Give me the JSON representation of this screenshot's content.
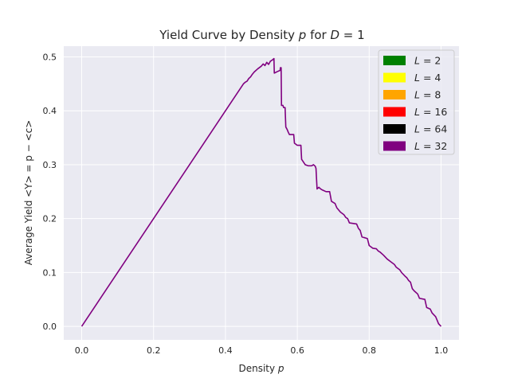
{
  "chart_data": {
    "type": "line",
    "title": "Yield Curve by Density p for D = 1",
    "title_parts": {
      "prefix": "Yield Curve by Density ",
      "var_p": "p",
      "middle": " for ",
      "var_D": "D",
      "suffix": " =  1"
    },
    "xlabel": "Density p",
    "xlabel_parts": {
      "text": "Density ",
      "var": "p"
    },
    "ylabel": "Average Yield  <Y> = p − <c>",
    "xlim": [
      -0.05,
      1.05
    ],
    "ylim": [
      -0.025,
      0.52
    ],
    "x_ticks": [
      0.0,
      0.2,
      0.4,
      0.6,
      0.8,
      1.0
    ],
    "x_tick_labels": [
      "0.0",
      "0.2",
      "0.4",
      "0.6",
      "0.8",
      "1.0"
    ],
    "y_ticks": [
      0.0,
      0.1,
      0.2,
      0.3,
      0.4,
      0.5
    ],
    "y_tick_labels": [
      "0.0",
      "0.1",
      "0.2",
      "0.3",
      "0.4",
      "0.5"
    ],
    "grid": true,
    "legend_position": "top-right",
    "legend": [
      {
        "label": "L = 2",
        "var": "L",
        "value": "2",
        "color": "#008000"
      },
      {
        "label": "L = 4",
        "var": "L",
        "value": "4",
        "color": "#ffff00"
      },
      {
        "label": "L = 8",
        "var": "L",
        "value": "8",
        "color": "#ffa500"
      },
      {
        "label": "L = 16",
        "var": "L",
        "value": "16",
        "color": "#ff0000"
      },
      {
        "label": "L = 64",
        "var": "L",
        "value": "64",
        "color": "#000000"
      },
      {
        "label": "L = 32",
        "var": "L",
        "value": "32",
        "color": "#800080"
      }
    ],
    "series": [
      {
        "name": "L = 32",
        "color": "#800080",
        "points": [
          [
            0.0,
            0.0
          ],
          [
            0.45,
            0.45
          ],
          [
            0.455,
            0.453
          ],
          [
            0.46,
            0.455
          ],
          [
            0.465,
            0.46
          ],
          [
            0.47,
            0.463
          ],
          [
            0.475,
            0.468
          ],
          [
            0.48,
            0.472
          ],
          [
            0.49,
            0.478
          ],
          [
            0.5,
            0.483
          ],
          [
            0.505,
            0.487
          ],
          [
            0.51,
            0.484
          ],
          [
            0.515,
            0.49
          ],
          [
            0.52,
            0.486
          ],
          [
            0.525,
            0.492
          ],
          [
            0.53,
            0.494
          ],
          [
            0.535,
            0.497
          ],
          [
            0.536,
            0.47
          ],
          [
            0.545,
            0.473
          ],
          [
            0.552,
            0.475
          ],
          [
            0.553,
            0.48
          ],
          [
            0.555,
            0.48
          ],
          [
            0.556,
            0.41
          ],
          [
            0.56,
            0.41
          ],
          [
            0.562,
            0.406
          ],
          [
            0.566,
            0.406
          ],
          [
            0.568,
            0.37
          ],
          [
            0.572,
            0.365
          ],
          [
            0.575,
            0.36
          ],
          [
            0.578,
            0.356
          ],
          [
            0.59,
            0.356
          ],
          [
            0.592,
            0.34
          ],
          [
            0.6,
            0.336
          ],
          [
            0.61,
            0.336
          ],
          [
            0.612,
            0.31
          ],
          [
            0.617,
            0.305
          ],
          [
            0.622,
            0.3
          ],
          [
            0.63,
            0.298
          ],
          [
            0.64,
            0.298
          ],
          [
            0.645,
            0.3
          ],
          [
            0.65,
            0.297
          ],
          [
            0.652,
            0.293
          ],
          [
            0.655,
            0.255
          ],
          [
            0.66,
            0.258
          ],
          [
            0.665,
            0.255
          ],
          [
            0.67,
            0.253
          ],
          [
            0.68,
            0.25
          ],
          [
            0.69,
            0.25
          ],
          [
            0.695,
            0.232
          ],
          [
            0.705,
            0.228
          ],
          [
            0.71,
            0.22
          ],
          [
            0.72,
            0.212
          ],
          [
            0.73,
            0.207
          ],
          [
            0.735,
            0.202
          ],
          [
            0.74,
            0.2
          ],
          [
            0.745,
            0.192
          ],
          [
            0.765,
            0.19
          ],
          [
            0.77,
            0.182
          ],
          [
            0.775,
            0.178
          ],
          [
            0.78,
            0.166
          ],
          [
            0.795,
            0.163
          ],
          [
            0.8,
            0.15
          ],
          [
            0.81,
            0.145
          ],
          [
            0.82,
            0.144
          ],
          [
            0.825,
            0.14
          ],
          [
            0.83,
            0.138
          ],
          [
            0.84,
            0.132
          ],
          [
            0.85,
            0.125
          ],
          [
            0.86,
            0.12
          ],
          [
            0.87,
            0.115
          ],
          [
            0.875,
            0.11
          ],
          [
            0.885,
            0.105
          ],
          [
            0.89,
            0.1
          ],
          [
            0.9,
            0.093
          ],
          [
            0.905,
            0.09
          ],
          [
            0.91,
            0.085
          ],
          [
            0.915,
            0.082
          ],
          [
            0.92,
            0.07
          ],
          [
            0.925,
            0.066
          ],
          [
            0.935,
            0.06
          ],
          [
            0.94,
            0.052
          ],
          [
            0.955,
            0.05
          ],
          [
            0.96,
            0.035
          ],
          [
            0.97,
            0.032
          ],
          [
            0.975,
            0.025
          ],
          [
            0.985,
            0.018
          ],
          [
            0.99,
            0.01
          ],
          [
            0.993,
            0.005
          ],
          [
            1.0,
            0.0
          ]
        ]
      }
    ]
  }
}
